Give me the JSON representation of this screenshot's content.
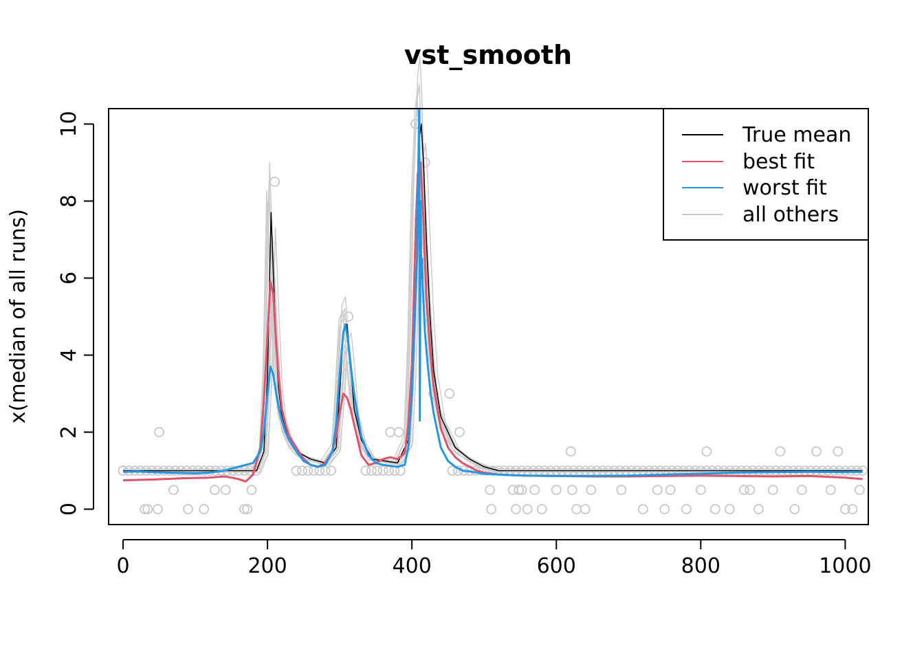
{
  "chart_data": {
    "type": "line",
    "title": "vst_smooth",
    "xlabel": "",
    "ylabel": "x(median of all runs)",
    "xlim": [
      -20,
      1032
    ],
    "ylim": [
      -0.4,
      10.4
    ],
    "x_ticks": [
      0,
      200,
      400,
      600,
      800,
      1000
    ],
    "y_ticks": [
      0,
      2,
      4,
      6,
      8,
      10
    ],
    "grid": false,
    "legend_position": "top-right",
    "colors": {
      "true_mean": "#000000",
      "best_fit": "#DF536B",
      "worst_fit": "#2297E6",
      "all_others": "#CCCCCC",
      "points": "#CCCCCC"
    },
    "legend": [
      {
        "label": "True mean",
        "color": "#000000"
      },
      {
        "label": "best fit",
        "color": "#DF536B"
      },
      {
        "label": "worst fit",
        "color": "#2297E6"
      },
      {
        "label": "all others",
        "color": "#CCCCCC"
      }
    ],
    "series": [
      {
        "name": "True mean",
        "color": "#000000",
        "x": [
          0,
          185,
          195,
          200,
          205,
          210,
          215,
          220,
          230,
          240,
          260,
          280,
          295,
          300,
          305,
          310,
          315,
          320,
          330,
          345,
          380,
          395,
          400,
          405,
          410,
          413,
          416,
          420,
          425,
          430,
          440,
          460,
          480,
          500,
          520,
          1024
        ],
        "y": [
          1,
          1,
          1.5,
          3.5,
          7.7,
          5.2,
          3.2,
          2.4,
          1.8,
          1.5,
          1.3,
          1.2,
          1.6,
          3.0,
          4.6,
          4.8,
          3.8,
          2.6,
          1.8,
          1.3,
          1.2,
          1.8,
          4.0,
          7.5,
          9.6,
          10.0,
          9.0,
          7.0,
          5.0,
          3.6,
          2.4,
          1.6,
          1.3,
          1.1,
          1.0,
          1.0
        ]
      },
      {
        "name": "best fit",
        "color": "#DF536B",
        "x": [
          0,
          40,
          80,
          120,
          140,
          150,
          160,
          170,
          180,
          190,
          195,
          200,
          204,
          208,
          212,
          216,
          220,
          225,
          230,
          240,
          250,
          260,
          270,
          280,
          290,
          295,
          300,
          305,
          310,
          315,
          320,
          325,
          330,
          340,
          350,
          360,
          370,
          380,
          390,
          395,
          400,
          404,
          408,
          412,
          416,
          420,
          425,
          430,
          440,
          450,
          460,
          470,
          480,
          490,
          500,
          520,
          540,
          560,
          600,
          650,
          700,
          750,
          800,
          850,
          900,
          950,
          1000,
          1024
        ],
        "y": [
          0.75,
          0.77,
          0.8,
          0.82,
          0.85,
          0.82,
          0.78,
          0.72,
          0.9,
          1.6,
          2.8,
          4.5,
          5.9,
          5.6,
          4.3,
          3.3,
          2.6,
          2.2,
          1.9,
          1.6,
          1.3,
          1.15,
          1.1,
          1.2,
          1.5,
          1.9,
          2.5,
          3.0,
          2.9,
          2.6,
          2.2,
          1.8,
          1.4,
          1.15,
          1.2,
          1.3,
          1.35,
          1.3,
          1.45,
          2.2,
          3.8,
          6.5,
          8.7,
          9.0,
          7.5,
          5.5,
          4.2,
          3.2,
          2.1,
          1.6,
          1.35,
          1.2,
          1.1,
          1.0,
          0.95,
          0.9,
          0.88,
          0.87,
          0.86,
          0.85,
          0.85,
          0.86,
          0.87,
          0.86,
          0.85,
          0.86,
          0.82,
          0.78
        ]
      },
      {
        "name": "worst fit",
        "color": "#2297E6",
        "x": [
          0,
          20,
          40,
          60,
          80,
          100,
          120,
          140,
          160,
          180,
          190,
          195,
          200,
          204,
          208,
          212,
          216,
          220,
          225,
          230,
          240,
          250,
          260,
          270,
          280,
          290,
          295,
          300,
          305,
          308,
          312,
          316,
          320,
          325,
          330,
          340,
          350,
          360,
          380,
          390,
          395,
          400,
          404,
          407,
          410,
          411,
          412,
          413,
          414,
          415,
          418,
          422,
          426,
          430,
          440,
          450,
          460,
          470,
          480,
          490,
          500,
          520,
          540,
          560,
          600,
          650,
          700,
          750,
          800,
          850,
          900,
          950,
          1000,
          1024
        ],
        "y": [
          0.97,
          0.98,
          0.96,
          0.95,
          0.94,
          0.93,
          0.95,
          1.0,
          1.1,
          1.2,
          1.5,
          2.0,
          3.0,
          3.7,
          3.5,
          3.0,
          2.6,
          2.3,
          2.0,
          1.8,
          1.5,
          1.25,
          1.15,
          1.1,
          1.15,
          1.5,
          2.2,
          3.5,
          4.6,
          4.8,
          4.3,
          3.6,
          3.0,
          2.4,
          1.9,
          1.4,
          1.2,
          1.15,
          1.1,
          1.15,
          1.6,
          3.0,
          5.0,
          6.5,
          10.4,
          2.3,
          8.0,
          6.0,
          6.5,
          5.8,
          4.6,
          3.7,
          3.0,
          2.5,
          1.6,
          1.25,
          1.1,
          1.0,
          0.98,
          0.95,
          0.92,
          0.9,
          0.88,
          0.87,
          0.86,
          0.86,
          0.87,
          0.9,
          0.92,
          0.95,
          0.96,
          0.97,
          0.96,
          0.97
        ]
      }
    ],
    "points": {
      "color": "#CCCCCC",
      "x": [
        0,
        30,
        34,
        48,
        50,
        70,
        90,
        112,
        127,
        142,
        168,
        172,
        178,
        210,
        312,
        370,
        382,
        405,
        418,
        430,
        452,
        466,
        508,
        510,
        540,
        544,
        548,
        552,
        560,
        570,
        580,
        600,
        620,
        622,
        628,
        640,
        648,
        690,
        720,
        740,
        750,
        758,
        780,
        800,
        808,
        820,
        840,
        860,
        868,
        880,
        900,
        910,
        930,
        940,
        960,
        980,
        990,
        1000,
        1010,
        1020
      ],
      "y": [
        1,
        0,
        0,
        0,
        2,
        0.5,
        0,
        0,
        0.5,
        0.5,
        0,
        0,
        0.5,
        8.5,
        5,
        2,
        2,
        10,
        9,
        3,
        3,
        2,
        0.5,
        0,
        0.5,
        0,
        0.5,
        0.5,
        0,
        0.5,
        0,
        0.5,
        1.5,
        0.5,
        0,
        0,
        0.5,
        0.5,
        0,
        0.5,
        0,
        0.5,
        0,
        0.5,
        1.5,
        0,
        0,
        0.5,
        0.5,
        0,
        0.5,
        1.5,
        0,
        0.5,
        1.5,
        0.5,
        1.5,
        0,
        0,
        0.5
      ]
    }
  }
}
